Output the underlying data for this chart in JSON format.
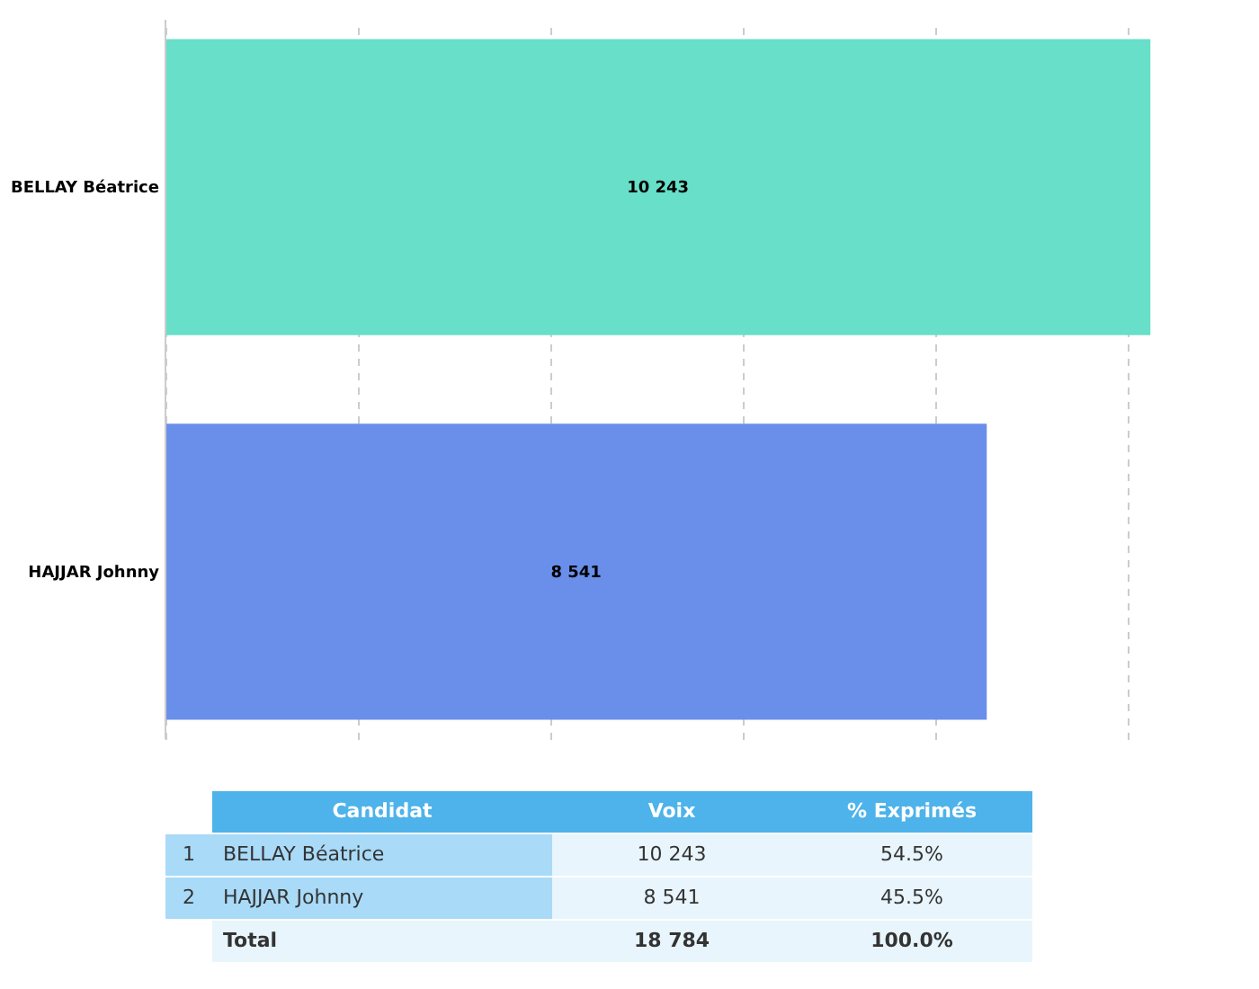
{
  "chart_data": {
    "type": "bar",
    "orientation": "horizontal",
    "categories": [
      "BELLAY Béatrice",
      "HAJJAR Johnny"
    ],
    "values": [
      10243,
      8541
    ],
    "colors": [
      "#68dfc8",
      "#6a8fea"
    ],
    "xlim": [
      0,
      10250
    ],
    "xticks": [
      {
        "value": 0,
        "label": null
      },
      {
        "value": 2000,
        "label": null
      },
      {
        "value": 4000,
        "label": null
      },
      {
        "value": 6000,
        "label": null
      },
      {
        "value": 8000,
        "label": null
      },
      {
        "value": 10000,
        "label": null
      }
    ],
    "grid": "x",
    "tick_labels": "y",
    "data_labels": true,
    "value_labels": [
      "10 243",
      "8 541"
    ],
    "annotations": [
      "Candidat",
      "Voix",
      "% Exprimés",
      "1",
      "BELLAY Béatrice",
      "10 243",
      "54.5%",
      "2",
      "HAJJAR Johnny",
      "8 541",
      "45.5%",
      "Total",
      "18 784",
      "100.0%"
    ]
  }
}
